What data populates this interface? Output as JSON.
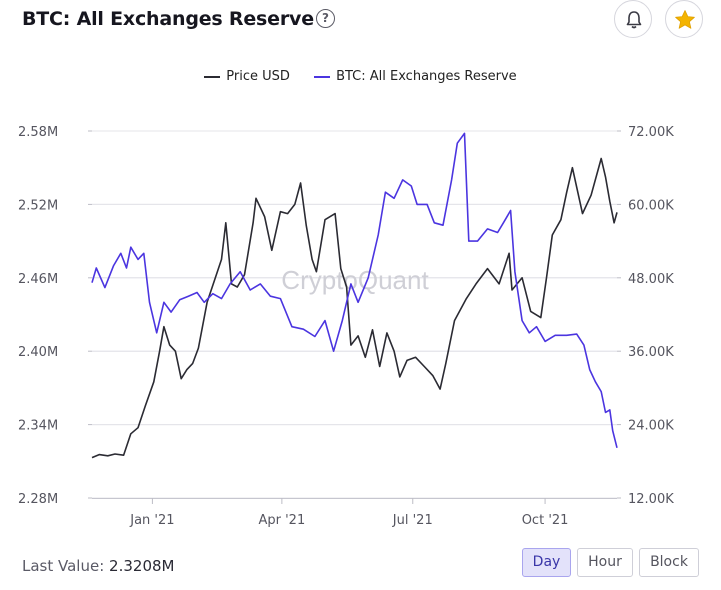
{
  "header": {
    "title": "BTC: All Exchanges Reserve",
    "help_symbol": "?",
    "icons": [
      "bell-icon",
      "star-icon"
    ]
  },
  "legend": {
    "price_label": "Price USD",
    "reserve_label": "BTC: All Exchanges Reserve"
  },
  "watermark": "CryptoQuant",
  "footer": {
    "last_value_label": "Last Value:",
    "last_value": "2.3208M",
    "ranges": [
      "Day",
      "Hour",
      "Block"
    ],
    "active_range": "Day"
  },
  "colors": {
    "price": "#2b2b33",
    "reserve": "#4b35e0",
    "grid": "#e4e4ea",
    "axis_text": "#55555f",
    "star": "#f4b400",
    "active_button": "#e3e2fa"
  },
  "chart_data": {
    "type": "line",
    "x_range": [
      "2020-11-20",
      "2021-11-20"
    ],
    "x_ticks": [
      {
        "date": "2021-01-01",
        "label": "Jan '21"
      },
      {
        "date": "2021-04-01",
        "label": "Apr '21"
      },
      {
        "date": "2021-07-01",
        "label": "Jul '21"
      },
      {
        "date": "2021-10-01",
        "label": "Oct '21"
      }
    ],
    "y_left": {
      "min": 2.28,
      "max": 2.58,
      "ticks": [
        "2.58M",
        "2.52M",
        "2.46M",
        "2.40M",
        "2.34M",
        "2.28M"
      ],
      "unit": "M"
    },
    "y_right": {
      "min": 12000,
      "max": 72000,
      "ticks": [
        "72.00K",
        "60.00K",
        "48.00K",
        "36.00K",
        "24.00K",
        "12.00K"
      ]
    },
    "grid": true,
    "legend_position": "top-center",
    "series": [
      {
        "name": "Price USD",
        "axis": "right",
        "points": [
          [
            "2020-11-20",
            18600
          ],
          [
            "2020-11-25",
            19100
          ],
          [
            "2020-12-01",
            18900
          ],
          [
            "2020-12-06",
            19200
          ],
          [
            "2020-12-12",
            19000
          ],
          [
            "2020-12-17",
            22500
          ],
          [
            "2020-12-22",
            23500
          ],
          [
            "2020-12-27",
            27000
          ],
          [
            "2021-01-02",
            31000
          ],
          [
            "2021-01-06",
            36000
          ],
          [
            "2021-01-09",
            40000
          ],
          [
            "2021-01-13",
            37000
          ],
          [
            "2021-01-17",
            36000
          ],
          [
            "2021-01-21",
            31500
          ],
          [
            "2021-01-25",
            33000
          ],
          [
            "2021-01-29",
            34000
          ],
          [
            "2021-02-02",
            36500
          ],
          [
            "2021-02-08",
            44000
          ],
          [
            "2021-02-13",
            47500
          ],
          [
            "2021-02-18",
            51000
          ],
          [
            "2021-02-21",
            57000
          ],
          [
            "2021-02-25",
            47000
          ],
          [
            "2021-03-01",
            46500
          ],
          [
            "2021-03-06",
            48500
          ],
          [
            "2021-03-12",
            57000
          ],
          [
            "2021-03-14",
            61000
          ],
          [
            "2021-03-20",
            58000
          ],
          [
            "2021-03-25",
            52500
          ],
          [
            "2021-03-31",
            58800
          ],
          [
            "2021-04-05",
            58500
          ],
          [
            "2021-04-10",
            60000
          ],
          [
            "2021-04-14",
            63500
          ],
          [
            "2021-04-18",
            56500
          ],
          [
            "2021-04-22",
            51000
          ],
          [
            "2021-04-25",
            49000
          ],
          [
            "2021-05-01",
            57500
          ],
          [
            "2021-05-08",
            58500
          ],
          [
            "2021-05-12",
            49500
          ],
          [
            "2021-05-16",
            46500
          ],
          [
            "2021-05-19",
            37000
          ],
          [
            "2021-05-24",
            38500
          ],
          [
            "2021-05-29",
            35000
          ],
          [
            "2021-06-03",
            39500
          ],
          [
            "2021-06-08",
            33500
          ],
          [
            "2021-06-13",
            39000
          ],
          [
            "2021-06-18",
            36000
          ],
          [
            "2021-06-22",
            31800
          ],
          [
            "2021-06-27",
            34500
          ],
          [
            "2021-07-03",
            35000
          ],
          [
            "2021-07-09",
            33500
          ],
          [
            "2021-07-15",
            32000
          ],
          [
            "2021-07-20",
            29800
          ],
          [
            "2021-07-24",
            34000
          ],
          [
            "2021-07-30",
            41000
          ],
          [
            "2021-08-07",
            44500
          ],
          [
            "2021-08-14",
            47000
          ],
          [
            "2021-08-22",
            49500
          ],
          [
            "2021-08-30",
            47000
          ],
          [
            "2021-09-06",
            52000
          ],
          [
            "2021-09-08",
            46000
          ],
          [
            "2021-09-15",
            48000
          ],
          [
            "2021-09-21",
            42500
          ],
          [
            "2021-09-28",
            41500
          ],
          [
            "2021-10-02",
            48000
          ],
          [
            "2021-10-06",
            55000
          ],
          [
            "2021-10-12",
            57500
          ],
          [
            "2021-10-16",
            62000
          ],
          [
            "2021-10-20",
            66000
          ],
          [
            "2021-10-27",
            58500
          ],
          [
            "2021-11-02",
            61500
          ],
          [
            "2021-11-09",
            67500
          ],
          [
            "2021-11-12",
            64500
          ],
          [
            "2021-11-15",
            60500
          ],
          [
            "2021-11-18",
            57000
          ],
          [
            "2021-11-20",
            58700
          ]
        ]
      },
      {
        "name": "BTC: All Exchanges Reserve",
        "axis": "left",
        "points": [
          [
            "2020-11-20",
            2.456
          ],
          [
            "2020-11-23",
            2.468
          ],
          [
            "2020-11-29",
            2.452
          ],
          [
            "2020-12-05",
            2.47
          ],
          [
            "2020-12-10",
            2.48
          ],
          [
            "2020-12-14",
            2.468
          ],
          [
            "2020-12-17",
            2.485
          ],
          [
            "2020-12-22",
            2.475
          ],
          [
            "2020-12-26",
            2.48
          ],
          [
            "2020-12-30",
            2.44
          ],
          [
            "2021-01-04",
            2.415
          ],
          [
            "2021-01-09",
            2.44
          ],
          [
            "2021-01-14",
            2.432
          ],
          [
            "2021-01-20",
            2.442
          ],
          [
            "2021-01-26",
            2.445
          ],
          [
            "2021-02-01",
            2.448
          ],
          [
            "2021-02-06",
            2.44
          ],
          [
            "2021-02-12",
            2.447
          ],
          [
            "2021-02-18",
            2.443
          ],
          [
            "2021-02-24",
            2.455
          ],
          [
            "2021-03-03",
            2.465
          ],
          [
            "2021-03-10",
            2.45
          ],
          [
            "2021-03-17",
            2.455
          ],
          [
            "2021-03-24",
            2.445
          ],
          [
            "2021-03-31",
            2.443
          ],
          [
            "2021-04-08",
            2.42
          ],
          [
            "2021-04-16",
            2.418
          ],
          [
            "2021-04-24",
            2.412
          ],
          [
            "2021-05-01",
            2.425
          ],
          [
            "2021-05-07",
            2.4
          ],
          [
            "2021-05-13",
            2.425
          ],
          [
            "2021-05-19",
            2.455
          ],
          [
            "2021-05-24",
            2.44
          ],
          [
            "2021-05-31",
            2.46
          ],
          [
            "2021-06-07",
            2.495
          ],
          [
            "2021-06-12",
            2.53
          ],
          [
            "2021-06-18",
            2.525
          ],
          [
            "2021-06-24",
            2.54
          ],
          [
            "2021-06-30",
            2.535
          ],
          [
            "2021-07-04",
            2.52
          ],
          [
            "2021-07-11",
            2.52
          ],
          [
            "2021-07-16",
            2.505
          ],
          [
            "2021-07-22",
            2.503
          ],
          [
            "2021-07-28",
            2.54
          ],
          [
            "2021-08-01",
            2.57
          ],
          [
            "2021-08-06",
            2.578
          ],
          [
            "2021-08-09",
            2.49
          ],
          [
            "2021-08-15",
            2.49
          ],
          [
            "2021-08-22",
            2.5
          ],
          [
            "2021-08-29",
            2.497
          ],
          [
            "2021-09-02",
            2.505
          ],
          [
            "2021-09-07",
            2.515
          ],
          [
            "2021-09-10",
            2.465
          ],
          [
            "2021-09-15",
            2.425
          ],
          [
            "2021-09-20",
            2.415
          ],
          [
            "2021-09-25",
            2.42
          ],
          [
            "2021-10-01",
            2.408
          ],
          [
            "2021-10-08",
            2.413
          ],
          [
            "2021-10-16",
            2.413
          ],
          [
            "2021-10-23",
            2.414
          ],
          [
            "2021-10-28",
            2.405
          ],
          [
            "2021-11-01",
            2.385
          ],
          [
            "2021-11-05",
            2.375
          ],
          [
            "2021-11-09",
            2.367
          ],
          [
            "2021-11-12",
            2.35
          ],
          [
            "2021-11-15",
            2.352
          ],
          [
            "2021-11-17",
            2.335
          ],
          [
            "2021-11-20",
            2.321
          ]
        ]
      }
    ]
  }
}
